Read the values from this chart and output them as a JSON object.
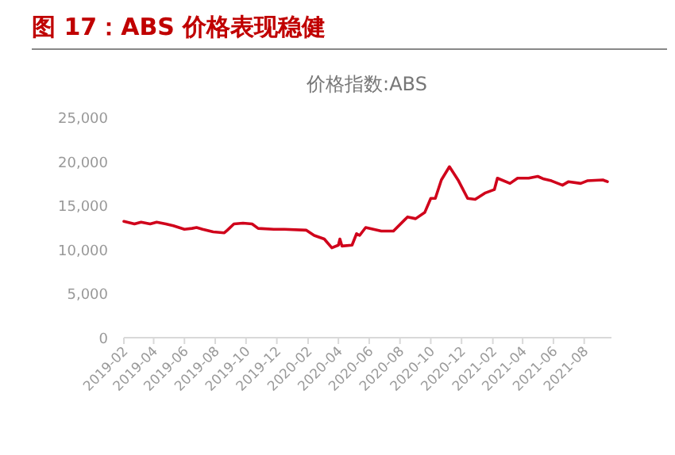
{
  "chart_data": {
    "type": "line",
    "title": "图 17：ABS 价格表现稳健",
    "subtitle": "价格指数:ABS",
    "x": [
      "2019-02-01",
      "2019-02-22",
      "2019-03-07",
      "2019-03-25",
      "2019-04-07",
      "2019-04-25",
      "2019-05-10",
      "2019-06-01",
      "2019-06-16",
      "2019-06-25",
      "2019-07-07",
      "2019-07-28",
      "2019-08-19",
      "2019-08-25",
      "2019-09-07",
      "2019-09-25",
      "2019-10-13",
      "2019-10-25",
      "2019-11-25",
      "2019-12-16",
      "2020-01-28",
      "2020-02-13",
      "2020-03-04",
      "2020-03-19",
      "2020-04-01",
      "2020-04-04",
      "2020-04-08",
      "2020-04-28",
      "2020-05-07",
      "2020-05-13",
      "2020-05-25",
      "2020-06-25",
      "2020-07-19",
      "2020-08-16",
      "2020-09-01",
      "2020-09-19",
      "2020-10-01",
      "2020-10-10",
      "2020-10-22",
      "2020-11-07",
      "2020-11-25",
      "2020-12-13",
      "2020-12-28",
      "2021-01-16",
      "2021-02-04",
      "2021-02-10",
      "2021-03-07",
      "2021-03-22",
      "2021-04-13",
      "2021-05-01",
      "2021-05-13",
      "2021-05-28",
      "2021-06-19",
      "2021-07-01",
      "2021-07-25",
      "2021-08-07",
      "2021-09-07",
      "2021-09-16"
    ],
    "series": [
      {
        "color": "#d0021b",
        "values": [
          13200,
          12900,
          13100,
          12900,
          13100,
          12900,
          12700,
          12300,
          12400,
          12500,
          12300,
          12000,
          11900,
          12200,
          12900,
          13000,
          12900,
          12400,
          12300,
          12300,
          12200,
          11600,
          11200,
          10200,
          10500,
          11200,
          10400,
          10500,
          11800,
          11600,
          12500,
          12100,
          12100,
          13700,
          13500,
          14200,
          15800,
          15800,
          17900,
          19400,
          17800,
          15800,
          15700,
          16400,
          16800,
          18100,
          17500,
          18100,
          18100,
          18300,
          18000,
          17800,
          17300,
          17700,
          17500,
          17800,
          17900,
          17700
        ]
      }
    ],
    "xlim": [
      "2019-02-01",
      "2021-09-24"
    ],
    "xticks": [
      "2019-02",
      "2019-04",
      "2019-06",
      "2019-08",
      "2019-10",
      "2019-12",
      "2020-02",
      "2020-04",
      "2020-06",
      "2020-08",
      "2020-10",
      "2020-12",
      "2021-02",
      "2021-04",
      "2021-06",
      "2021-08"
    ],
    "ylim": [
      0,
      25000
    ],
    "yticks": [
      0,
      {
        "value": 5000,
        "label": "5,000"
      },
      {
        "value": 10000,
        "label": "10,000"
      },
      {
        "value": 15000,
        "label": "15,000"
      },
      {
        "value": 20000,
        "label": "20,000"
      },
      {
        "value": 25000,
        "label": "25,000"
      }
    ],
    "marker": "none",
    "line_style": "solid"
  }
}
